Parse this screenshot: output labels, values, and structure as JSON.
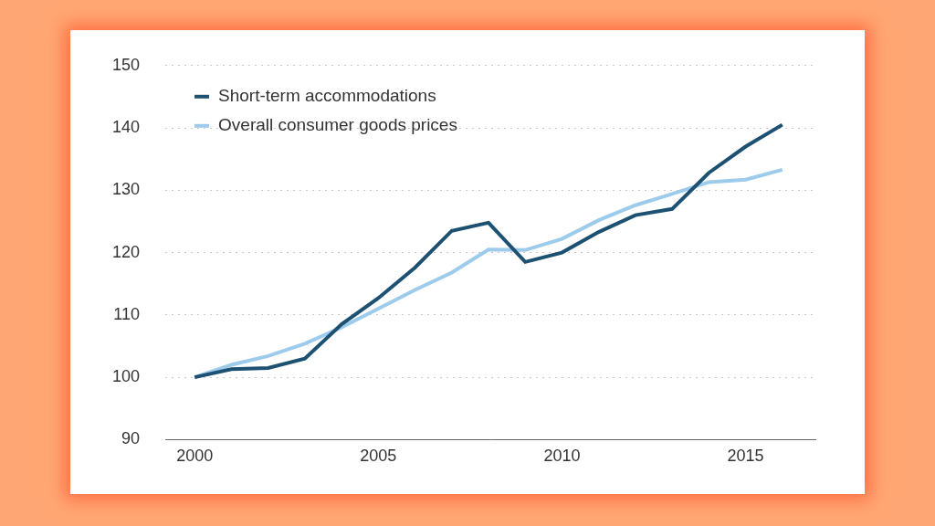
{
  "chart_data": {
    "type": "line",
    "x": [
      2000,
      2001,
      2002,
      2003,
      2004,
      2005,
      2006,
      2007,
      2008,
      2009,
      2010,
      2011,
      2012,
      2013,
      2014,
      2015,
      2016
    ],
    "series": [
      {
        "name": "Short-term accommodations",
        "color": "#1d5172",
        "values": [
          100,
          101.3,
          101.5,
          103,
          108.5,
          112.7,
          117.6,
          123.5,
          124.8,
          118.5,
          120,
          123.3,
          126,
          127,
          132.8,
          137,
          140.5
        ]
      },
      {
        "name": "Overall consumer goods prices",
        "color": "#9dcbec",
        "values": [
          100,
          102,
          103.4,
          105.4,
          108,
          111,
          114,
          116.8,
          120.5,
          120.4,
          122.2,
          125.2,
          127.6,
          129.4,
          131.3,
          131.7,
          133.3
        ]
      }
    ],
    "xlim": [
      1999.2,
      2016.9
    ],
    "xticks": [
      2000,
      2005,
      2010,
      2015
    ],
    "ylim": [
      90,
      150
    ],
    "yticks": [
      90,
      100,
      110,
      120,
      130,
      140,
      150
    ],
    "grid": true,
    "legend": "top-left"
  }
}
